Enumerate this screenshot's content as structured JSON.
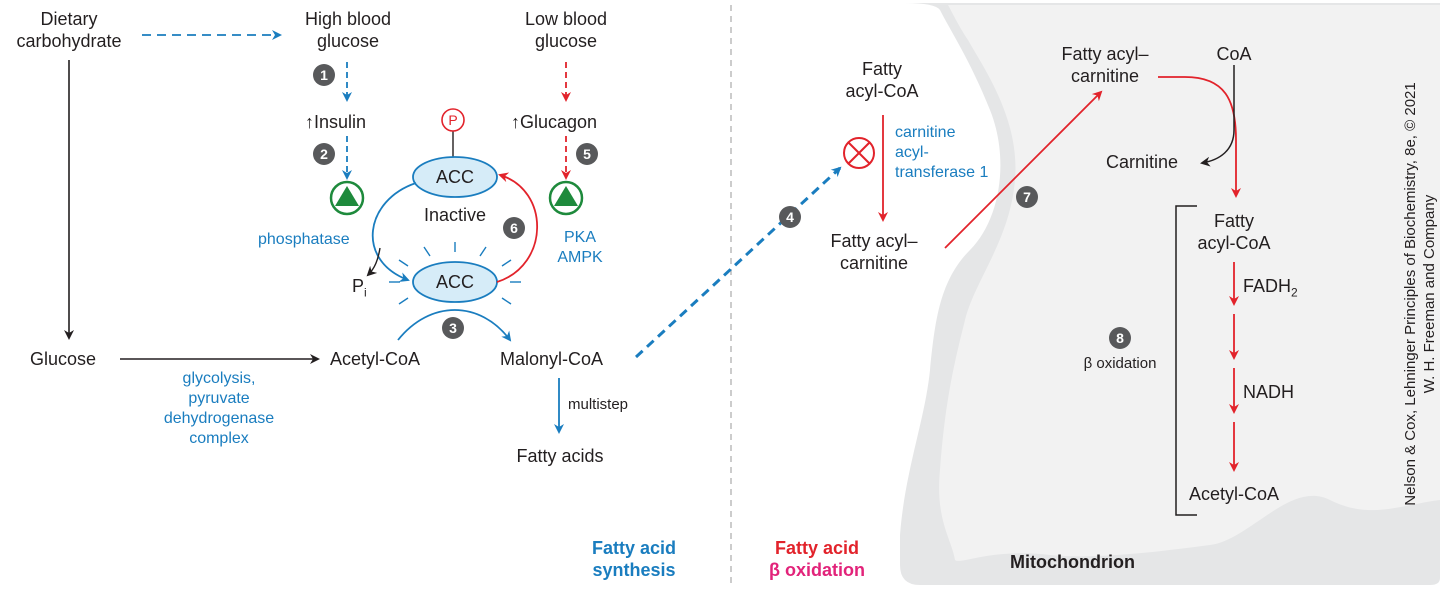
{
  "labels": {
    "dietary_carbohydrate": "Dietary\ncarbohydrate",
    "high_blood_glucose": "High blood\nglucose",
    "low_blood_glucose": "Low blood\nglucose",
    "insulin": "↑Insulin",
    "glucagon": "↑Glucagon",
    "phospho_p": "P",
    "acc": "ACC",
    "inactive": "Inactive",
    "phosphatase": "phosphatase",
    "pi": "P",
    "pi_sub": "i",
    "pka_ampk": "PKA\nAMPK",
    "glucose": "Glucose",
    "acetyl_coa": "Acetyl-CoA",
    "malonyl_coa": "Malonyl-CoA",
    "glycolysis": "glycolysis,\npyruvate\ndehydrogenase\ncomplex",
    "multistep": "multistep",
    "fatty_acids": "Fatty acids",
    "fatty_acyl_coa": "Fatty\nacyl-CoA",
    "carnitine_acyltransferase": "carnitine\nacyl-\ntransferase 1",
    "fatty_acyl_carnitine_out": "Fatty acyl–\ncarnitine",
    "fatty_acyl_carnitine_in": "Fatty acyl–\ncarnitine",
    "coa": "CoA",
    "carnitine": "Carnitine",
    "fatty_acyl_coa_mito": "Fatty\nacyl-CoA",
    "fadh2": "FADH",
    "fadh2_sub": "2",
    "nadh": "NADH",
    "acetyl_coa_mito": "Acetyl-CoA",
    "beta_oxidation_label": "β oxidation",
    "synthesis_title": "Fatty acid\nsynthesis",
    "oxidation_title_1": "Fatty acid",
    "oxidation_title_2": "β oxidation",
    "mitochondrion": "Mitochondrion",
    "credit": "Nelson & Cox, Lehninger Principles of Biochemistry, 8e, © 2021\nW. H. Freeman and Company"
  },
  "steps": [
    "1",
    "2",
    "3",
    "4",
    "5",
    "6",
    "7",
    "8"
  ],
  "colors": {
    "blue": "#1a7dbf",
    "red": "#e2232b",
    "green": "#1e8a3c",
    "acc_fill": "#d6ecf8",
    "mito_gray": "#e5e6e7",
    "step_gray": "#58595b"
  }
}
